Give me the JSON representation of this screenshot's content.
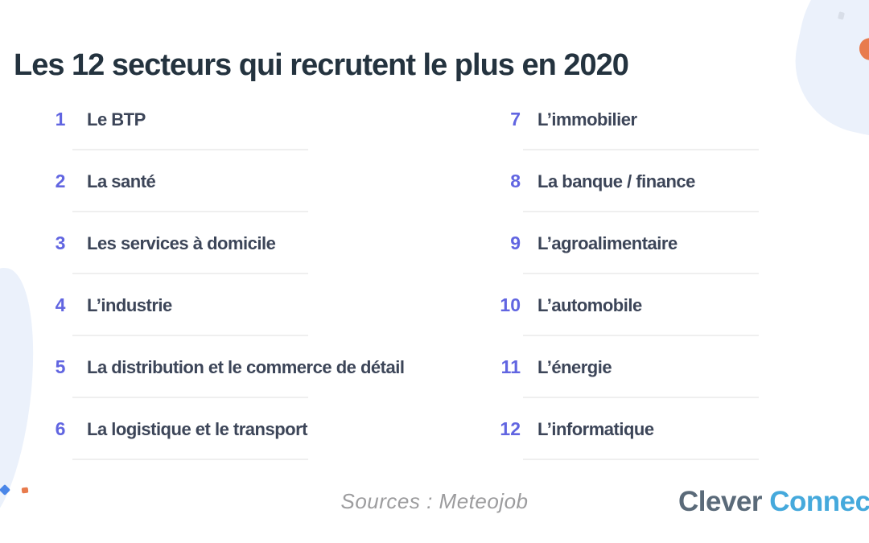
{
  "title": "Les 12 secteurs qui recrutent le plus en 2020",
  "list": {
    "left": [
      {
        "num": "1",
        "label": "Le BTP"
      },
      {
        "num": "2",
        "label": "La santé"
      },
      {
        "num": "3",
        "label": "Les services à domicile"
      },
      {
        "num": "4",
        "label": "L’industrie"
      },
      {
        "num": "5",
        "label": "La distribution et le commerce de détail"
      },
      {
        "num": "6",
        "label": "La logistique et le transport"
      }
    ],
    "right": [
      {
        "num": "7",
        "label": "L’immobilier"
      },
      {
        "num": "8",
        "label": "La banque / finance"
      },
      {
        "num": "9",
        "label": "L’agroalimentaire"
      },
      {
        "num": "10",
        "label": "L’automobile"
      },
      {
        "num": "11",
        "label": "L’énergie"
      },
      {
        "num": "12",
        "label": "L’informatique"
      }
    ]
  },
  "footer": {
    "sources": "Sources : Meteojob",
    "logo_clever": "Clever",
    "logo_connect": "Connect"
  },
  "colors": {
    "title": "#24333F",
    "number": "#6165E1",
    "item_text": "#3C4558",
    "divider": "#EFEFEF",
    "sources_text": "#9C9C9E",
    "logo_clever": "#5A6A79",
    "logo_connect": "#45A9DC",
    "blob": "#EBF1FB",
    "accent_blue": "#4A86E8",
    "accent_orange": "#E87B4D"
  }
}
